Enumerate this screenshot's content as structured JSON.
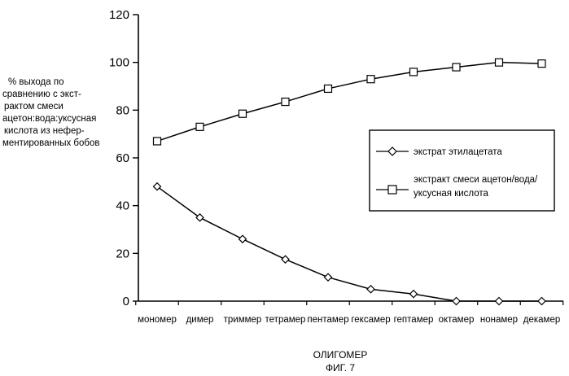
{
  "chart_data": {
    "type": "line",
    "ylabel": [
      "% выхода по",
      "сравнению с экст-",
      "рактом смеси",
      "ацетон:вода:уксусная",
      "кислота из  нефер-",
      "ментированных бобов"
    ],
    "xlabel": "ОЛИГОМЕР",
    "caption": "ФИГ.  7",
    "ylim": [
      0,
      120
    ],
    "yticks": [
      "0",
      "20",
      "40",
      "60",
      "80",
      "100",
      "120"
    ],
    "categories": [
      "мономер",
      "димер",
      "триммер",
      "тетрамер",
      "пентамер",
      "гексамер",
      "гептамер",
      "октамер",
      "нонамер",
      "декамер"
    ],
    "series": [
      {
        "name": "экстрат этилацетата",
        "marker": "diamond",
        "values": [
          48,
          35,
          26,
          17.5,
          10,
          5,
          3,
          0,
          0,
          0
        ]
      },
      {
        "name": [
          "экстракт смеси ацетон/вода/",
          "уксусная кислота"
        ],
        "marker": "square",
        "values": [
          67,
          73,
          78.5,
          83.5,
          89,
          93,
          96,
          98,
          100,
          99.5
        ]
      }
    ],
    "legend_position": "right"
  }
}
